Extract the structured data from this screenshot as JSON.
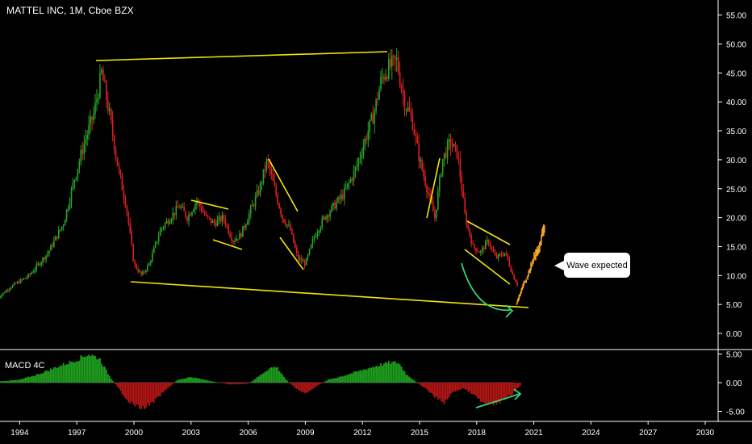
{
  "title": "MATTEL INC, 1M, Cboe BZX",
  "macd_label": "MACD 4C",
  "callout_text": "Wave expected",
  "colors": {
    "background": "#000000",
    "up": "#26a826",
    "down": "#e02020",
    "projection": "#f5a623",
    "trendline": "#f2e600",
    "arrow": "#2ed67a",
    "macd_pos": "#1e9e1e",
    "macd_neg": "#b01515"
  },
  "chart_data": [
    {
      "type": "line",
      "name": "price",
      "ylim": [
        0,
        55
      ],
      "y_ticks": [
        "55.00",
        "50.00",
        "45.00",
        "40.00",
        "35.00",
        "30.00",
        "25.00",
        "20.00",
        "15.00",
        "10.00",
        "5.00",
        "0.00"
      ],
      "x_ticks": [
        "1994",
        "1997",
        "2000",
        "2003",
        "2006",
        "2009",
        "2012",
        "2015",
        "2018",
        "2021",
        "2024",
        "2027",
        "2030"
      ],
      "xlim": [
        1992.8,
        2031.5
      ],
      "x": [
        1992.8,
        1993.5,
        1994.5,
        1995.5,
        1996.3,
        1996.9,
        1997.4,
        1997.9,
        1998.3,
        1998.7,
        1999.2,
        1999.6,
        2000.0,
        2000.4,
        2000.8,
        2001.4,
        2001.9,
        2002.4,
        2002.8,
        2003.3,
        2003.8,
        2004.2,
        2004.7,
        2005.2,
        2005.6,
        2006.1,
        2006.6,
        2007.0,
        2007.3,
        2007.8,
        2008.2,
        2008.6,
        2009.0,
        2009.5,
        2010.0,
        2010.5,
        2011.0,
        2011.6,
        2012.1,
        2012.6,
        2013.0,
        2013.4,
        2013.8,
        2014.2,
        2014.6,
        2015.0,
        2015.4,
        2015.8,
        2016.2,
        2016.6,
        2017.0,
        2017.4,
        2017.8,
        2018.2,
        2018.6,
        2019.0,
        2019.5,
        2019.9,
        2020.2
      ],
      "values": [
        6,
        8,
        10,
        14,
        19,
        27,
        33,
        38,
        45,
        38,
        28,
        22,
        12,
        10,
        12,
        18,
        20,
        22,
        20,
        23,
        20,
        19,
        20,
        16,
        17,
        21,
        25,
        30,
        26,
        20,
        18,
        13,
        12,
        17,
        20,
        22,
        24,
        28,
        33,
        38,
        44,
        46,
        47,
        40,
        37,
        30,
        25,
        20,
        30,
        33,
        31,
        20,
        15,
        14,
        16,
        13,
        14,
        10,
        8
      ]
    },
    {
      "type": "line",
      "name": "projection",
      "x": [
        2020.1,
        2020.4,
        2020.7,
        2021.0,
        2021.3,
        2021.6
      ],
      "values": [
        5,
        8,
        10,
        13,
        15,
        19
      ]
    },
    {
      "type": "bar",
      "name": "MACD",
      "ylim": [
        -5.5,
        5.5
      ],
      "y_ticks": [
        "5.00",
        "0.00",
        "-5.00"
      ],
      "x": [
        1992.8,
        1994.0,
        1995.0,
        1996.0,
        1997.0,
        1997.6,
        1998.2,
        1998.7,
        1999.3,
        1999.8,
        2000.4,
        2001.0,
        2001.6,
        2002.3,
        2003.0,
        2004.0,
        2005.0,
        2006.0,
        2006.6,
        2007.1,
        2007.5,
        2008.0,
        2008.5,
        2009.0,
        2009.5,
        2010.2,
        2011.0,
        2012.0,
        2012.8,
        2013.4,
        2013.9,
        2014.3,
        2014.8,
        2015.3,
        2015.8,
        2016.3,
        2016.8,
        2017.3,
        2017.8,
        2018.3,
        2018.8,
        2019.3,
        2019.8,
        2020.3
      ],
      "values": [
        0.2,
        0.5,
        1.5,
        2.8,
        4.0,
        5.0,
        4.2,
        1.2,
        -1.5,
        -3.5,
        -4.5,
        -3.5,
        -1.5,
        0.5,
        1.0,
        0.3,
        -0.3,
        -0.2,
        1.2,
        2.5,
        2.8,
        0.5,
        -1.0,
        -2.0,
        -0.8,
        0.5,
        1.2,
        2.2,
        3.0,
        3.5,
        3.5,
        1.5,
        0.2,
        -1.0,
        -2.5,
        -3.5,
        -1.5,
        -1.0,
        -2.0,
        -3.5,
        -4.0,
        -3.2,
        -2.2,
        -0.5
      ]
    }
  ]
}
